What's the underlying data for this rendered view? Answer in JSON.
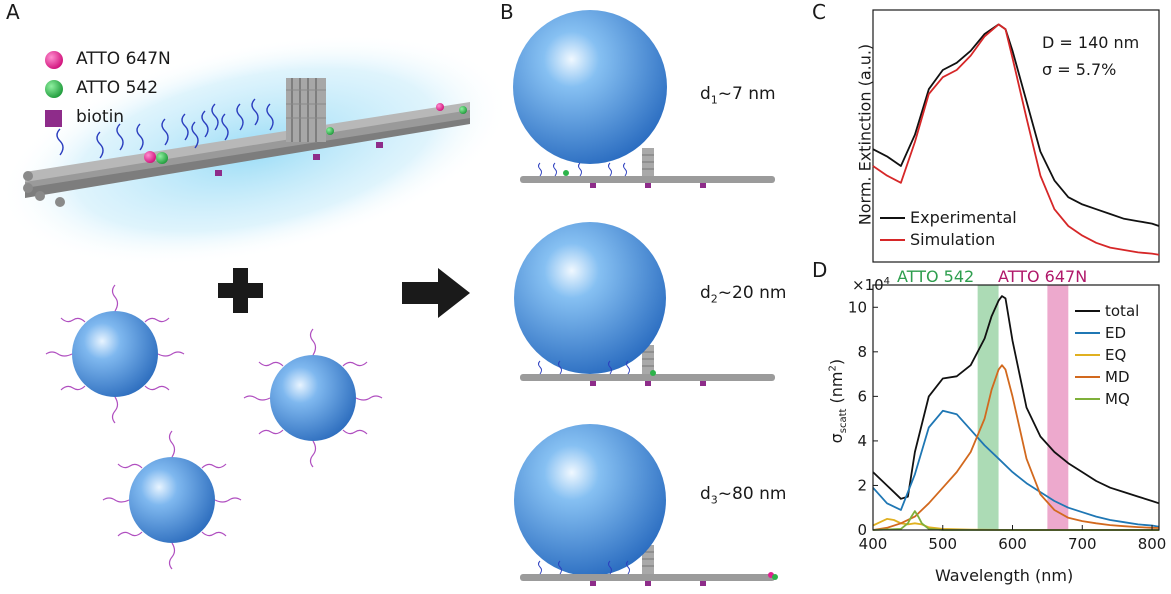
{
  "panels": {
    "a": {
      "label": "A",
      "legend": [
        {
          "text": "ATTO 647N",
          "color": "#e0208f"
        },
        {
          "text": "ATTO 542",
          "color": "#2db34a"
        },
        {
          "text": "biotin",
          "color": "#8e2c8a"
        }
      ]
    },
    "b": {
      "label": "B",
      "sizes": [
        {
          "sym": "d",
          "sub": "1",
          "text": "~7 nm"
        },
        {
          "sym": "d",
          "sub": "2",
          "text": "~20 nm"
        },
        {
          "sym": "d",
          "sub": "3",
          "text": "~80 nm"
        }
      ]
    },
    "c": {
      "label": "C",
      "ylabel": "Norm. Extinction (a.u.)",
      "annot_d": "D = 140 nm",
      "annot_sigma": "σ = 5.7%",
      "legend": [
        {
          "text": "Experimental",
          "color": "#111111"
        },
        {
          "text": "Simulation",
          "color": "#d62728"
        }
      ]
    },
    "d": {
      "label": "D",
      "multiplier_base": "×10",
      "multiplier_exp": "4",
      "ylabel_main": "σ",
      "ylabel_sub": "scatt",
      "ylabel_unit": " (nm",
      "ylabel_unit_sup": "2",
      "ylabel_unit_close": ")",
      "xlabel": "Wavelength (nm)",
      "band_labels": [
        {
          "text": "ATTO 542",
          "color": "#2e9e4e"
        },
        {
          "text": "ATTO 647N",
          "color": "#b0186a"
        }
      ],
      "legend": [
        {
          "text": "total",
          "color": "#111111"
        },
        {
          "text": "ED",
          "color": "#1f77b4"
        },
        {
          "text": "EQ",
          "color": "#e0b020"
        },
        {
          "text": "MD",
          "color": "#d2691e"
        },
        {
          "text": "MQ",
          "color": "#7fb03a"
        }
      ]
    }
  },
  "chart_data": [
    {
      "type": "line",
      "title": "",
      "xlabel": "",
      "ylabel": "Norm. Extinction (a.u.)",
      "xlim": [
        400,
        810
      ],
      "ylim": [
        0,
        1.05
      ],
      "series": [
        {
          "name": "Experimental",
          "color": "#111111",
          "x": [
            400,
            420,
            440,
            460,
            480,
            500,
            520,
            540,
            560,
            580,
            590,
            600,
            620,
            640,
            660,
            680,
            700,
            720,
            740,
            760,
            780,
            800,
            810
          ],
          "y": [
            0.47,
            0.44,
            0.4,
            0.53,
            0.72,
            0.8,
            0.83,
            0.88,
            0.95,
            0.99,
            0.97,
            0.88,
            0.67,
            0.46,
            0.34,
            0.27,
            0.24,
            0.22,
            0.2,
            0.18,
            0.17,
            0.16,
            0.15
          ]
        },
        {
          "name": "Simulation",
          "color": "#d62728",
          "x": [
            400,
            420,
            440,
            460,
            480,
            500,
            520,
            540,
            560,
            580,
            590,
            600,
            620,
            640,
            660,
            680,
            700,
            720,
            740,
            760,
            780,
            800,
            810
          ],
          "y": [
            0.4,
            0.36,
            0.33,
            0.5,
            0.7,
            0.77,
            0.8,
            0.86,
            0.94,
            0.99,
            0.97,
            0.85,
            0.6,
            0.36,
            0.22,
            0.15,
            0.11,
            0.08,
            0.06,
            0.05,
            0.04,
            0.035,
            0.03
          ]
        }
      ]
    },
    {
      "type": "line",
      "title": "",
      "xlabel": "Wavelength (nm)",
      "ylabel": "σscatt (nm2)",
      "xlim": [
        400,
        810
      ],
      "ylim": [
        0,
        11
      ],
      "x_ticks": [
        400,
        500,
        600,
        700,
        800
      ],
      "y_ticks": [
        0,
        2,
        4,
        6,
        8,
        10
      ],
      "bands": [
        {
          "label": "ATTO 542",
          "from": 550,
          "to": 580,
          "color": "#7fc88e"
        },
        {
          "label": "ATTO 647N",
          "from": 650,
          "to": 680,
          "color": "#e37bb2"
        }
      ],
      "series": [
        {
          "name": "total",
          "color": "#111111",
          "x": [
            400,
            420,
            440,
            450,
            460,
            480,
            500,
            520,
            540,
            560,
            570,
            580,
            585,
            590,
            600,
            620,
            640,
            660,
            680,
            700,
            720,
            740,
            760,
            780,
            800,
            810
          ],
          "y": [
            2.6,
            2.0,
            1.4,
            1.5,
            3.5,
            6.0,
            6.8,
            6.9,
            7.4,
            8.6,
            9.6,
            10.3,
            10.5,
            10.4,
            8.5,
            5.5,
            4.2,
            3.5,
            3.0,
            2.6,
            2.2,
            1.9,
            1.7,
            1.5,
            1.3,
            1.2
          ]
        },
        {
          "name": "ED",
          "color": "#1f77b4",
          "x": [
            400,
            420,
            440,
            460,
            480,
            500,
            520,
            540,
            560,
            580,
            600,
            620,
            640,
            660,
            680,
            700,
            720,
            740,
            760,
            780,
            800,
            810
          ],
          "y": [
            1.9,
            1.2,
            0.9,
            2.5,
            4.6,
            5.35,
            5.2,
            4.5,
            3.8,
            3.2,
            2.6,
            2.1,
            1.7,
            1.3,
            1.0,
            0.8,
            0.6,
            0.45,
            0.35,
            0.25,
            0.2,
            0.15
          ]
        },
        {
          "name": "EQ",
          "color": "#e0b020",
          "x": [
            400,
            410,
            420,
            430,
            440,
            450,
            460,
            470,
            480,
            500,
            540,
            600,
            700,
            810
          ],
          "y": [
            0.2,
            0.35,
            0.5,
            0.45,
            0.3,
            0.25,
            0.3,
            0.25,
            0.12,
            0.05,
            0.02,
            0.0,
            0.0,
            0.0
          ]
        },
        {
          "name": "MD",
          "color": "#d2691e",
          "x": [
            400,
            420,
            440,
            460,
            480,
            500,
            520,
            540,
            560,
            570,
            580,
            585,
            590,
            600,
            620,
            640,
            660,
            680,
            700,
            720,
            740,
            760,
            780,
            800,
            810
          ],
          "y": [
            0.0,
            0.1,
            0.3,
            0.6,
            1.2,
            1.9,
            2.6,
            3.5,
            5.0,
            6.3,
            7.2,
            7.4,
            7.2,
            6.0,
            3.2,
            1.6,
            0.9,
            0.55,
            0.4,
            0.3,
            0.22,
            0.17,
            0.13,
            0.1,
            0.09
          ]
        },
        {
          "name": "MQ",
          "color": "#7fb03a",
          "x": [
            400,
            440,
            450,
            455,
            460,
            465,
            470,
            480,
            500,
            600,
            810
          ],
          "y": [
            0.0,
            0.05,
            0.3,
            0.6,
            0.85,
            0.6,
            0.3,
            0.05,
            0.0,
            0.0,
            0.0
          ]
        }
      ]
    }
  ]
}
